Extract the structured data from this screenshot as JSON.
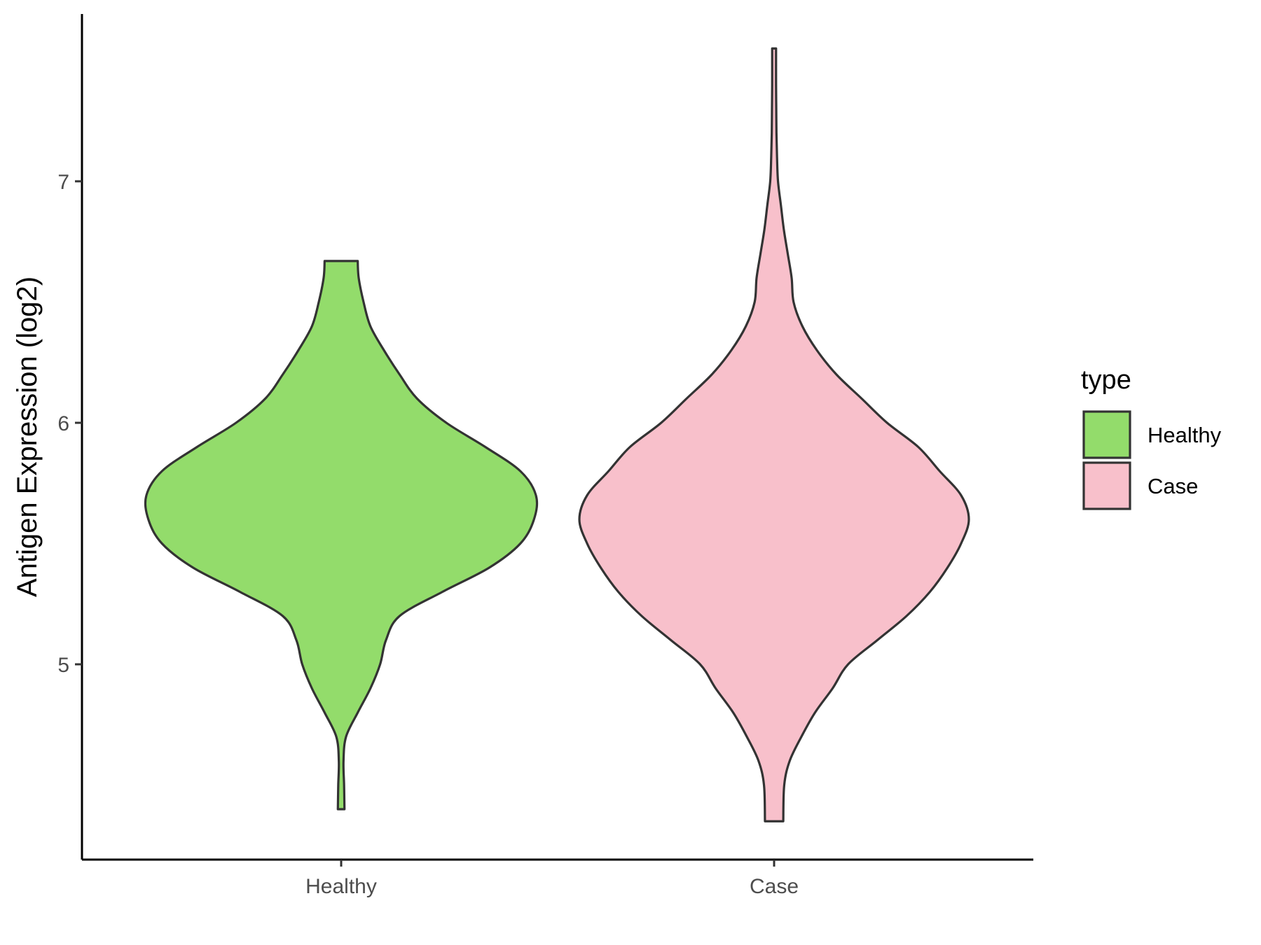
{
  "chart_data": {
    "type": "violin",
    "title": "",
    "xlabel": "",
    "ylabel": "Antigen Expression (log2)",
    "categories": [
      "Healthy",
      "Case"
    ],
    "ylim": [
      4.2,
      7.7
    ],
    "yticks": [
      5,
      6,
      7
    ],
    "legend": {
      "title": "type",
      "placement": "right",
      "entries": [
        {
          "label": "Healthy",
          "color": "#93dc6b"
        },
        {
          "label": "Case",
          "color": "#f8c0cb"
        }
      ]
    },
    "series": [
      {
        "category": "Healthy",
        "color": "#93dc6b",
        "min": 4.4,
        "max": 6.67,
        "profile": [
          [
            4.4,
            0.017
          ],
          [
            4.5,
            0.015
          ],
          [
            4.6,
            0.012
          ],
          [
            4.7,
            0.025
          ],
          [
            4.8,
            0.085
          ],
          [
            4.9,
            0.15
          ],
          [
            5.0,
            0.2
          ],
          [
            5.1,
            0.23
          ],
          [
            5.2,
            0.3
          ],
          [
            5.3,
            0.52
          ],
          [
            5.4,
            0.76
          ],
          [
            5.5,
            0.92
          ],
          [
            5.6,
            0.99
          ],
          [
            5.7,
            1.0
          ],
          [
            5.8,
            0.92
          ],
          [
            5.9,
            0.74
          ],
          [
            6.0,
            0.54
          ],
          [
            6.1,
            0.39
          ],
          [
            6.2,
            0.3
          ],
          [
            6.3,
            0.22
          ],
          [
            6.4,
            0.15
          ],
          [
            6.5,
            0.115
          ],
          [
            6.6,
            0.09
          ],
          [
            6.67,
            0.085
          ]
        ]
      },
      {
        "category": "Case",
        "color": "#f8c0cb",
        "min": 4.35,
        "max": 7.55,
        "profile": [
          [
            4.35,
            0.047
          ],
          [
            4.5,
            0.052
          ],
          [
            4.6,
            0.08
          ],
          [
            4.7,
            0.14
          ],
          [
            4.8,
            0.21
          ],
          [
            4.9,
            0.3
          ],
          [
            5.0,
            0.38
          ],
          [
            5.1,
            0.53
          ],
          [
            5.2,
            0.68
          ],
          [
            5.3,
            0.8
          ],
          [
            5.4,
            0.89
          ],
          [
            5.5,
            0.96
          ],
          [
            5.6,
            1.0
          ],
          [
            5.7,
            0.96
          ],
          [
            5.8,
            0.85
          ],
          [
            5.9,
            0.74
          ],
          [
            6.0,
            0.58
          ],
          [
            6.1,
            0.45
          ],
          [
            6.2,
            0.32
          ],
          [
            6.3,
            0.22
          ],
          [
            6.4,
            0.145
          ],
          [
            6.5,
            0.1
          ],
          [
            6.6,
            0.09
          ],
          [
            6.7,
            0.07
          ],
          [
            6.8,
            0.05
          ],
          [
            6.9,
            0.035
          ],
          [
            7.0,
            0.02
          ],
          [
            7.1,
            0.015
          ],
          [
            7.2,
            0.012
          ],
          [
            7.3,
            0.011
          ],
          [
            7.4,
            0.01
          ],
          [
            7.55,
            0.01
          ]
        ]
      }
    ]
  }
}
